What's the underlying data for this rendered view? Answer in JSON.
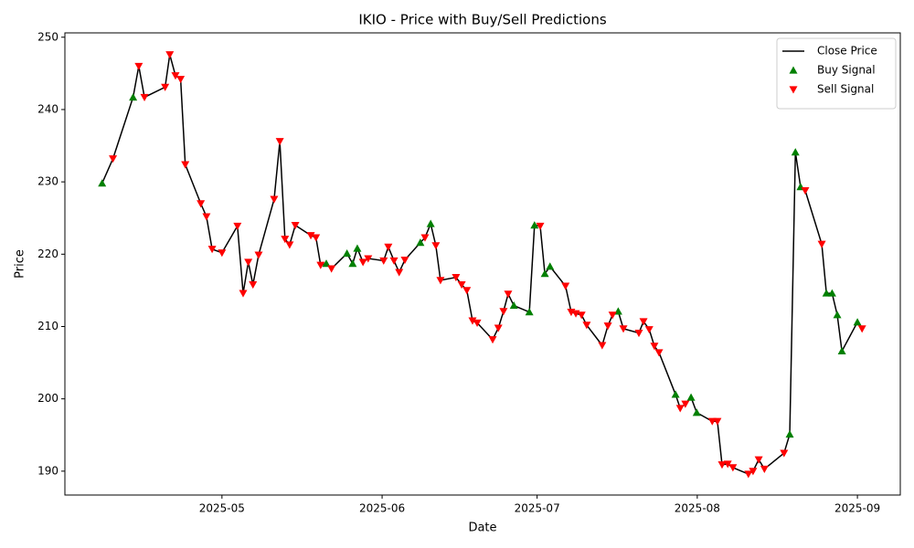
{
  "chart_data": {
    "type": "line",
    "title": "IKIO - Price with Buy/Sell Predictions",
    "xlabel": "Date",
    "ylabel": "Price",
    "xlim": [
      -0.4,
      161.3
    ],
    "xticks": [
      {
        "value": 30,
        "label": "2025-05"
      },
      {
        "value": 61,
        "label": "2025-06"
      },
      {
        "value": 91,
        "label": "2025-07"
      },
      {
        "value": 122,
        "label": "2025-08"
      },
      {
        "value": 153,
        "label": "2025-09"
      }
    ],
    "ylim": [
      186.7,
      250.6
    ],
    "yticks": [
      190,
      200,
      210,
      220,
      230,
      240,
      250
    ],
    "legend": "upper right",
    "series": [
      {
        "name": "Close Price",
        "type": "line",
        "color": "#000000",
        "x": [
          6.8,
          8.9,
          12.8,
          13.9,
          15.0,
          19.0,
          19.9,
          21.0,
          22.0,
          22.9,
          25.9,
          27.0,
          28.1,
          30.0,
          33.0,
          34.1,
          35.1,
          36.0,
          37.1,
          40.1,
          41.2,
          42.2,
          43.1,
          44.2,
          47.2,
          48.2,
          49.1,
          50.2,
          51.2,
          54.2,
          55.3,
          56.2,
          57.3,
          58.3,
          61.3,
          62.2,
          63.3,
          64.3,
          65.4,
          68.4,
          69.3,
          70.4,
          71.4,
          72.3,
          75.3,
          76.4,
          77.4,
          78.5,
          79.4,
          82.4,
          83.5,
          84.5,
          85.4,
          86.5,
          89.5,
          90.5,
          91.6,
          92.5,
          93.5,
          96.5,
          97.6,
          98.5,
          99.6,
          100.6,
          103.6,
          104.7,
          105.6,
          106.7,
          107.7,
          110.7,
          111.6,
          112.7,
          113.7,
          114.6,
          117.8,
          118.7,
          119.7,
          120.8,
          121.9,
          124.9,
          125.9,
          126.8,
          127.9,
          128.9,
          131.9,
          132.8,
          133.9,
          135.0,
          138.8,
          139.9,
          141.0,
          142.0,
          142.9,
          146.1,
          147.0,
          148.1,
          149.1,
          150.0,
          153.0,
          153.9
        ],
        "values": [
          229.8,
          233.2,
          241.7,
          246.0,
          241.7,
          243.1,
          247.6,
          244.7,
          244.2,
          232.4,
          227.0,
          225.2,
          220.7,
          220.2,
          223.9,
          214.6,
          218.9,
          215.8,
          219.9,
          227.6,
          235.6,
          222.1,
          221.3,
          224.0,
          222.6,
          222.3,
          218.5,
          218.7,
          218.0,
          220.1,
          218.7,
          220.8,
          218.9,
          219.4,
          219.1,
          221.0,
          219.1,
          217.5,
          219.2,
          221.6,
          222.3,
          224.2,
          221.2,
          216.4,
          216.8,
          215.8,
          215.0,
          210.8,
          210.5,
          208.2,
          209.8,
          212.1,
          214.5,
          212.9,
          212.0,
          224.0,
          223.9,
          217.3,
          218.3,
          215.6,
          212.0,
          211.8,
          211.6,
          210.2,
          207.4,
          210.1,
          211.6,
          212.1,
          209.7,
          209.1,
          210.7,
          209.6,
          207.3,
          206.4,
          200.6,
          198.7,
          199.3,
          200.2,
          198.1,
          196.9,
          196.9,
          190.9,
          191.0,
          190.5,
          189.6,
          190.0,
          191.6,
          190.3,
          192.5,
          195.1,
          234.1,
          229.3,
          228.8,
          221.4,
          214.6,
          214.6,
          211.6,
          206.6,
          210.6,
          209.7
        ]
      },
      {
        "name": "Buy Signal",
        "type": "scatter",
        "marker": "triangle-up",
        "color": "#008000",
        "x": [
          6.8,
          12.8,
          50.2,
          54.2,
          55.3,
          56.2,
          68.4,
          70.4,
          86.5,
          89.5,
          90.5,
          92.5,
          93.5,
          106.7,
          117.8,
          120.8,
          121.9,
          139.9,
          141.0,
          142.0,
          147.0,
          148.1,
          149.1,
          150.0,
          153.0
        ],
        "values": [
          229.8,
          241.7,
          218.7,
          220.1,
          218.7,
          220.8,
          221.6,
          224.2,
          212.9,
          212.0,
          224.0,
          217.3,
          218.3,
          212.1,
          200.6,
          200.2,
          198.1,
          195.1,
          234.1,
          229.3,
          214.6,
          214.6,
          211.6,
          206.6,
          210.6
        ]
      },
      {
        "name": "Sell Signal",
        "type": "scatter",
        "marker": "triangle-down",
        "color": "#ff0000",
        "x": [
          8.9,
          13.9,
          15.0,
          19.0,
          19.9,
          21.0,
          22.0,
          22.9,
          25.9,
          27.0,
          28.1,
          30.0,
          33.0,
          34.1,
          35.1,
          36.0,
          37.1,
          40.1,
          41.2,
          42.2,
          43.1,
          44.2,
          47.2,
          48.2,
          49.1,
          51.2,
          57.3,
          58.3,
          61.3,
          62.2,
          63.3,
          64.3,
          65.4,
          69.3,
          71.4,
          72.3,
          75.3,
          76.4,
          77.4,
          78.5,
          79.4,
          82.4,
          83.5,
          84.5,
          85.4,
          91.6,
          96.5,
          97.6,
          98.5,
          99.6,
          100.6,
          103.6,
          104.7,
          105.6,
          107.7,
          110.7,
          111.6,
          112.7,
          113.7,
          114.6,
          118.7,
          119.7,
          124.9,
          125.9,
          126.8,
          127.9,
          128.9,
          131.9,
          132.8,
          133.9,
          135.0,
          138.8,
          142.9,
          146.1,
          153.9
        ],
        "values": [
          233.2,
          246.0,
          241.7,
          243.1,
          247.6,
          244.7,
          244.2,
          232.4,
          227.0,
          225.2,
          220.7,
          220.2,
          223.9,
          214.6,
          218.9,
          215.8,
          219.9,
          227.6,
          235.6,
          222.1,
          221.3,
          224.0,
          222.6,
          222.3,
          218.5,
          218.0,
          218.9,
          219.4,
          219.1,
          221.0,
          219.1,
          217.5,
          219.2,
          222.3,
          221.2,
          216.4,
          216.8,
          215.8,
          215.0,
          210.8,
          210.5,
          208.2,
          209.8,
          212.1,
          214.5,
          223.9,
          215.6,
          212.0,
          211.8,
          211.6,
          210.2,
          207.4,
          210.1,
          211.6,
          209.7,
          209.1,
          210.7,
          209.6,
          207.3,
          206.4,
          198.7,
          199.3,
          196.9,
          196.9,
          190.9,
          191.0,
          190.5,
          189.6,
          190.0,
          191.6,
          190.3,
          192.5,
          228.8,
          221.4,
          209.7
        ]
      }
    ]
  }
}
